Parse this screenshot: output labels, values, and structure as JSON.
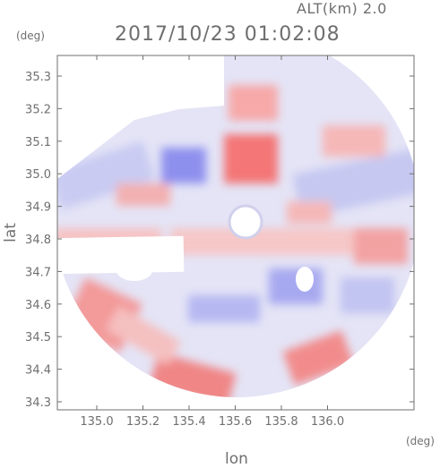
{
  "header": {
    "altitude": "ALT(km) 2.0",
    "timestamp": "2017/10/23 01:02:08"
  },
  "axes": {
    "x_unit": "(deg)",
    "y_unit": "(deg)",
    "x_label": "lon",
    "y_label": "lat",
    "x_ticks": [
      "135.0",
      "135.2",
      "135.4",
      "135.6",
      "135.8",
      "136.0"
    ],
    "y_ticks": [
      "35.3",
      "35.2",
      "35.1",
      "35.0",
      "34.9",
      "34.8",
      "34.7",
      "34.6",
      "34.5",
      "34.4",
      "34.3"
    ]
  },
  "colors": {
    "positive": "#f06a6a",
    "negative": "#7a7ef0",
    "neutral": "#e8e8f7",
    "axis": "#6f6f6f"
  }
}
